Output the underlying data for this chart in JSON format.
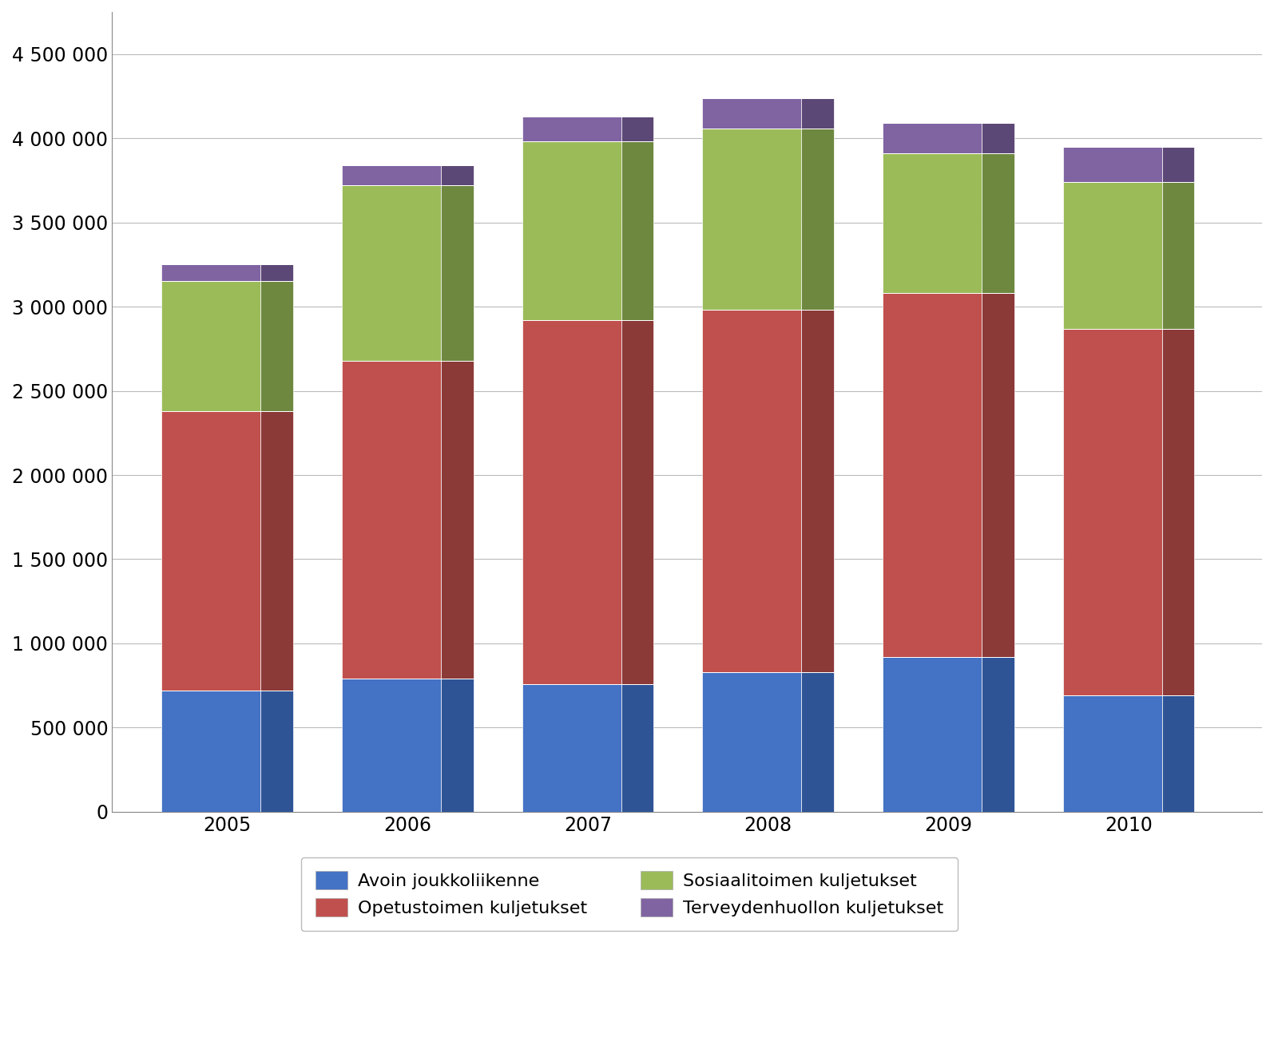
{
  "years": [
    "2005",
    "2006",
    "2007",
    "2008",
    "2009",
    "2010"
  ],
  "avoin_joukkoliikenne": [
    720000,
    790000,
    760000,
    830000,
    920000,
    690000
  ],
  "opetustoimen_kuljetukset": [
    1660000,
    1890000,
    2160000,
    2150000,
    2160000,
    2180000
  ],
  "sosiaalitoimen_kuljetukset": [
    770000,
    1040000,
    1060000,
    1080000,
    830000,
    870000
  ],
  "terveydenhuollon_kuljetukset": [
    100000,
    120000,
    150000,
    180000,
    180000,
    210000
  ],
  "color_avoin": "#4472C4",
  "color_avoin_dark": "#2F5496",
  "color_avoin_top": "#6B8FCE",
  "color_opetus": "#C0504D",
  "color_opetus_dark": "#8B3A38",
  "color_opetus_top": "#CC7270",
  "color_sosiaali": "#9BBB59",
  "color_sosiaali_dark": "#6E8840",
  "color_sosiaali_top": "#B0CA7A",
  "color_terveys": "#8064A2",
  "color_terveys_dark": "#5C4876",
  "color_terveys_top": "#9D85B5",
  "ylim": [
    0,
    4750000
  ],
  "yticks": [
    0,
    500000,
    1000000,
    1500000,
    2000000,
    2500000,
    3000000,
    3500000,
    4000000,
    4500000
  ],
  "ytick_labels": [
    "0",
    "500 000",
    "1 000 000",
    "1 500 000",
    "2 000 000",
    "2 500 000",
    "3 000 000",
    "3 500 000",
    "4 000 000",
    "4 500 000"
  ],
  "legend_labels": [
    "Avoin joukkoliikenne",
    "Opetustoimen kuljetukset",
    "Sosiaalitoimen kuljetukset",
    "Terveydenhuollon kuljetukset"
  ],
  "bar_width": 0.55,
  "depth": 0.18,
  "background_color": "#FFFFFF",
  "grid_color": "#BBBBBB"
}
